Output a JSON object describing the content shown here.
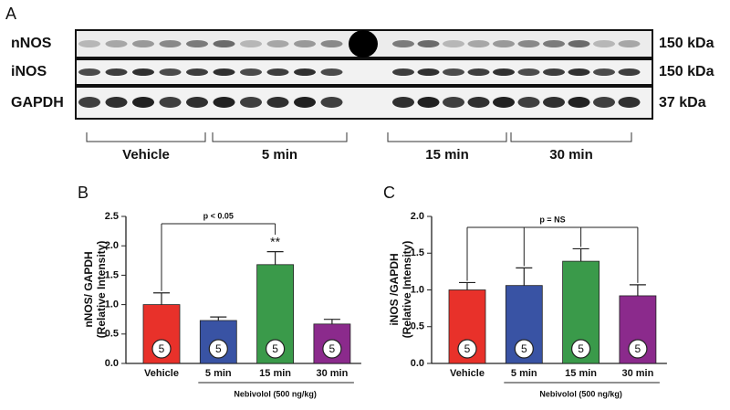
{
  "panel_a": {
    "label": "A",
    "blots": [
      {
        "name": "nNOS",
        "size": "150 kDa"
      },
      {
        "name": "iNOS",
        "size": "150 kDa"
      },
      {
        "name": "GAPDH",
        "size": "37 kDa"
      }
    ],
    "groups": [
      "Vehicle",
      "5 min",
      "15 min",
      "30 min"
    ]
  },
  "chart_data": [
    {
      "type": "bar",
      "panel": "B",
      "ylabel": [
        "nNOS/ GAPDH",
        "(Relative Intensity)"
      ],
      "categories": [
        "Vehicle",
        "5 min",
        "15 min",
        "30 min"
      ],
      "values": [
        1.0,
        0.73,
        1.68,
        0.67
      ],
      "errors": [
        0.2,
        0.06,
        0.22,
        0.08
      ],
      "colors": [
        "#e8312a",
        "#3953a4",
        "#3a9a4a",
        "#8b2a8c"
      ],
      "n": [
        5,
        5,
        5,
        5
      ],
      "ylim": [
        0,
        2.5
      ],
      "yticks": [
        {
          "value": 0,
          "label": "0.0"
        },
        0.5,
        {
          "value": 1,
          "label": "1.0"
        },
        1.5,
        {
          "value": 2,
          "label": "2.0"
        },
        2.5
      ],
      "annotation": "p < 0.05",
      "annotation_bars": [
        0,
        2
      ],
      "star_label": "**",
      "group_label": "Nebivolol (500 ng/kg)"
    },
    {
      "type": "bar",
      "panel": "C",
      "ylabel": [
        "iNOS /GAPDH",
        "(Relative Intensity)"
      ],
      "categories": [
        "Vehicle",
        "5 min",
        "15 min",
        "30 min"
      ],
      "values": [
        1.0,
        1.06,
        1.39,
        0.92
      ],
      "errors": [
        0.1,
        0.24,
        0.17,
        0.15
      ],
      "colors": [
        "#e8312a",
        "#3953a4",
        "#3a9a4a",
        "#8b2a8c"
      ],
      "n": [
        5,
        5,
        5,
        5
      ],
      "ylim": [
        0,
        2
      ],
      "yticks": [
        {
          "value": 0,
          "label": "0.0"
        },
        0.5,
        {
          "value": 1,
          "label": "1.0"
        },
        1.5,
        {
          "value": 2,
          "label": "2.0"
        }
      ],
      "annotation": "p = NS",
      "annotation_bars": [
        0,
        1,
        2,
        3
      ],
      "group_label": "Nebivolol (500 ng/kg)"
    }
  ]
}
